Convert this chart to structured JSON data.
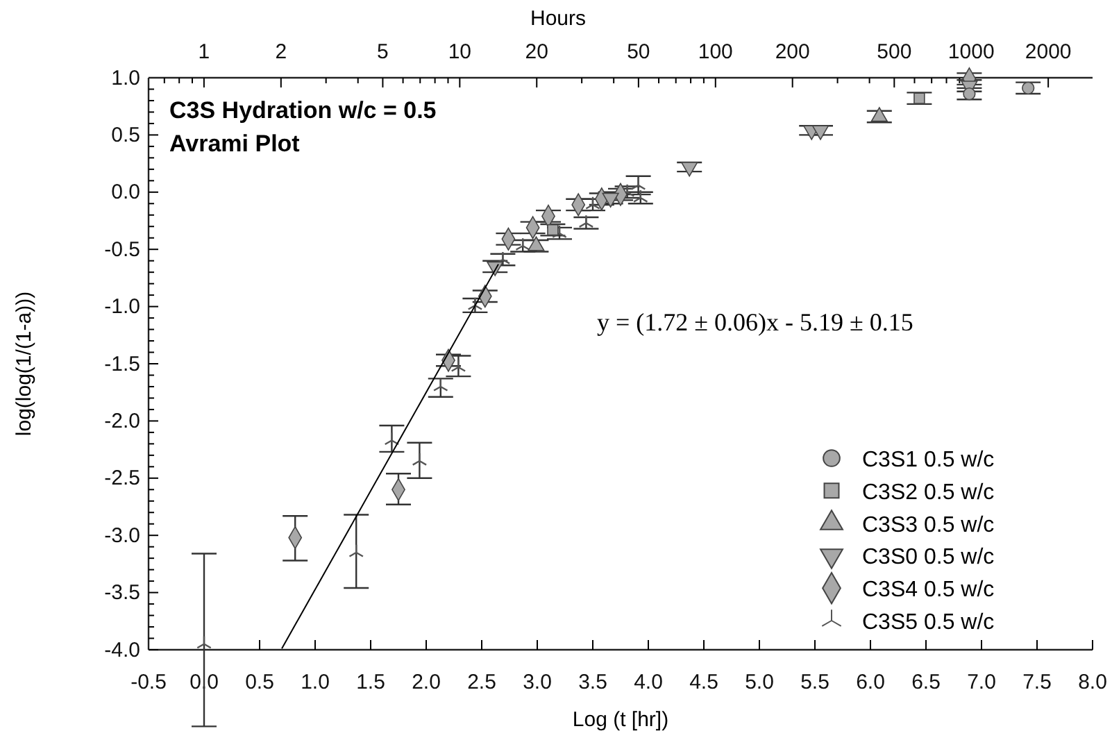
{
  "chart_data": {
    "type": "scatter",
    "title": "C3S Hydration  w/c = 0.5",
    "subtitle": "Avrami Plot",
    "xlabel": "Log (t [hr])",
    "ylabel": "log(log(1/(1-a)))",
    "x2label": "Hours",
    "xlim": [
      -0.5,
      8
    ],
    "ylim": [
      -4,
      1
    ],
    "x2lim": [
      0.607,
      2981
    ],
    "log": "x2",
    "xticks": [
      {
        "value": -0.5,
        "label": "-0.5"
      },
      {
        "value": 0,
        "label": "0.0"
      },
      {
        "value": 0.5,
        "label": "0.5"
      },
      {
        "value": 1,
        "label": "1.0"
      },
      {
        "value": 1.5,
        "label": "1.5"
      },
      {
        "value": 2,
        "label": "2.0"
      },
      {
        "value": 2.5,
        "label": "2.5"
      },
      {
        "value": 3,
        "label": "3.0"
      },
      {
        "value": 3.5,
        "label": "3.5"
      },
      {
        "value": 4,
        "label": "4.0"
      },
      {
        "value": 4.5,
        "label": "4.5"
      },
      {
        "value": 5,
        "label": "5.0"
      },
      {
        "value": 5.5,
        "label": "5.5"
      },
      {
        "value": 6,
        "label": "6.0"
      },
      {
        "value": 6.5,
        "label": "6.5"
      },
      {
        "value": 7,
        "label": "7.0"
      },
      {
        "value": 7.5,
        "label": "7.5"
      },
      {
        "value": 8,
        "label": "8.0"
      }
    ],
    "yticks": [
      {
        "value": -4,
        "label": "-4.0"
      },
      {
        "value": -3.9,
        "label": null
      },
      {
        "value": -3.8,
        "label": null
      },
      {
        "value": -3.7,
        "label": null
      },
      {
        "value": -3.6,
        "label": null
      },
      {
        "value": -3.5,
        "label": "-3.5"
      },
      {
        "value": -3.4,
        "label": null
      },
      {
        "value": -3.3,
        "label": null
      },
      {
        "value": -3.2,
        "label": null
      },
      {
        "value": -3.1,
        "label": null
      },
      {
        "value": -3,
        "label": "-3.0"
      },
      {
        "value": -2.9,
        "label": null
      },
      {
        "value": -2.8,
        "label": null
      },
      {
        "value": -2.7,
        "label": null
      },
      {
        "value": -2.6,
        "label": null
      },
      {
        "value": -2.5,
        "label": "-2.5"
      },
      {
        "value": -2.4,
        "label": null
      },
      {
        "value": -2.3,
        "label": null
      },
      {
        "value": -2.2,
        "label": null
      },
      {
        "value": -2.1,
        "label": null
      },
      {
        "value": -2,
        "label": "-2.0"
      },
      {
        "value": -1.9,
        "label": null
      },
      {
        "value": -1.8,
        "label": null
      },
      {
        "value": -1.7,
        "label": null
      },
      {
        "value": -1.6,
        "label": null
      },
      {
        "value": -1.5,
        "label": "-1.5"
      },
      {
        "value": -1.4,
        "label": null
      },
      {
        "value": -1.3,
        "label": null
      },
      {
        "value": -1.2,
        "label": null
      },
      {
        "value": -1.1,
        "label": null
      },
      {
        "value": -1,
        "label": "-1.0"
      },
      {
        "value": -0.9,
        "label": null
      },
      {
        "value": -0.8,
        "label": null
      },
      {
        "value": -0.7,
        "label": null
      },
      {
        "value": -0.6,
        "label": null
      },
      {
        "value": -0.5,
        "label": "-0.5"
      },
      {
        "value": -0.4,
        "label": null
      },
      {
        "value": -0.3,
        "label": null
      },
      {
        "value": -0.2,
        "label": null
      },
      {
        "value": -0.1,
        "label": null
      },
      {
        "value": 0,
        "label": "0.0"
      },
      {
        "value": 0.1,
        "label": null
      },
      {
        "value": 0.2,
        "label": null
      },
      {
        "value": 0.3,
        "label": null
      },
      {
        "value": 0.4,
        "label": null
      },
      {
        "value": 0.5,
        "label": "0.5"
      },
      {
        "value": 0.6,
        "label": null
      },
      {
        "value": 0.7,
        "label": null
      },
      {
        "value": 0.8,
        "label": null
      },
      {
        "value": 0.9,
        "label": null
      },
      {
        "value": 1,
        "label": "1.0"
      }
    ],
    "x2ticks": [
      {
        "value": 0.7,
        "label": null
      },
      {
        "value": 0.8,
        "label": null
      },
      {
        "value": 0.9,
        "label": null
      },
      1,
      2,
      {
        "value": 3,
        "label": null
      },
      {
        "value": 4,
        "label": null
      },
      5,
      {
        "value": 6,
        "label": null
      },
      {
        "value": 7,
        "label": null
      },
      {
        "value": 8,
        "label": null
      },
      {
        "value": 9,
        "label": null
      },
      10,
      20,
      {
        "value": 30,
        "label": null
      },
      {
        "value": 40,
        "label": null
      },
      50,
      {
        "value": 60,
        "label": null
      },
      {
        "value": 70,
        "label": null
      },
      {
        "value": 80,
        "label": null
      },
      {
        "value": 90,
        "label": null
      },
      100,
      200,
      {
        "value": 300,
        "label": null
      },
      {
        "value": 400,
        "label": null
      },
      500,
      {
        "value": 600,
        "label": null
      },
      {
        "value": 700,
        "label": null
      },
      {
        "value": 800,
        "label": null
      },
      {
        "value": 900,
        "label": null
      },
      1000,
      2000
    ],
    "legend": "bottom right",
    "annotations": [
      "y = (1.72 ± 0.06)x - 5.19 ± 0.15"
    ],
    "series": [
      {
        "name": "C3S1 0.5 w/c",
        "color": "#a8a8a8",
        "marker": "circle",
        "x": [
          6.89,
          7.42
        ],
        "values": [
          0.86,
          0.91
        ],
        "errors": [
          0.05,
          0.05
        ]
      },
      {
        "name": "C3S2 0.5 w/c",
        "color": "#a8a8a8",
        "marker": "square",
        "x": [
          3.14,
          6.44
        ],
        "values": [
          -0.33,
          0.82
        ],
        "errors": [
          0.05,
          0.05
        ]
      },
      {
        "name": "C3S3 0.5 w/c",
        "color": "#a8a8a8",
        "marker": "triangle",
        "x": [
          2.99,
          6.08
        ],
        "values": [
          -0.47,
          0.66
        ],
        "errors": [
          0.05,
          0.05
        ]
      },
      {
        "name": "C3S0 0.5 w/c",
        "color": "#a8a8a8",
        "marker": "triangle-down",
        "x": [
          2.62,
          3.66,
          4.37,
          5.47,
          5.55,
          6.89
        ],
        "values": [
          -0.65,
          -0.05,
          0.22,
          0.54,
          0.54,
          0.93
        ],
        "errors": [
          0.05,
          0.05,
          0.04,
          0.04,
          0.04,
          0.05
        ]
      },
      {
        "name": "C3S4 0.5 w/c",
        "color": "#a8a8a8",
        "marker": "diamond",
        "x": [
          0.82,
          1.75,
          2.2,
          2.53,
          2.74,
          2.96,
          3.1,
          3.37,
          3.58,
          3.75,
          6.89
        ],
        "values": [
          -3.02,
          -2.6,
          -1.47,
          -0.91,
          -0.41,
          -0.31,
          -0.21,
          -0.11,
          -0.06,
          -0.02,
          0.99
        ],
        "errors": [
          [
            -3.22,
            -2.83
          ],
          [
            -2.73,
            -2.46
          ],
          0.05,
          0.05,
          0.05,
          0.05,
          0.05,
          0.05,
          0.05,
          0.05,
          0.05
        ]
      },
      {
        "name": "C3S5 0.5 w/c",
        "color": "#555555",
        "marker": "cross",
        "x": [
          0,
          1.37,
          1.69,
          1.94,
          2.13,
          2.29,
          2.44,
          2.69,
          2.87,
          3.2,
          3.44,
          3.5,
          3.81,
          3.91,
          3.93
        ],
        "values": [
          -3.95,
          -3.15,
          -2.17,
          -2.35,
          -1.7,
          -1.53,
          -0.99,
          -0.59,
          -0.47,
          -0.36,
          -0.27,
          -0.11,
          0,
          0.06,
          -0.05
        ],
        "errors": [
          [
            -4.67,
            -3.16
          ],
          [
            -3.46,
            -2.82
          ],
          [
            -2.27,
            -2.04
          ],
          [
            -2.5,
            -2.19
          ],
          [
            -1.79,
            -1.63
          ],
          [
            -1.61,
            -1.43
          ],
          0.06,
          0.05,
          0.05,
          0.05,
          0.05,
          0.05,
          0.05,
          0.08,
          0.05
        ]
      },
      {
        "type": "line",
        "color": "#000000",
        "line_style": "solid",
        "x": [
          0.7,
          2.65
        ],
        "values": [
          -3.99,
          -0.63
        ]
      }
    ]
  }
}
